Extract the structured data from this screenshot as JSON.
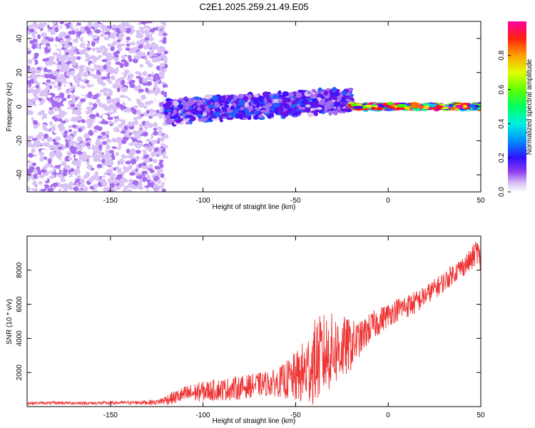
{
  "title": "C2E1.2025.259.21.49.E05",
  "colors": {
    "snr_line": "#ee3333",
    "spectrogram_palette": [
      "#ffffff",
      "#d9c2f5",
      "#a56cf0",
      "#6a12e8",
      "#4010ff",
      "#2060ff",
      "#00c8ff",
      "#00ff90",
      "#40ff00",
      "#c8ff00",
      "#ffd000",
      "#ff7000",
      "#ff1020",
      "#ff00a0"
    ]
  },
  "chart_data": [
    {
      "type": "heatmap",
      "name": "spectrogram",
      "xlabel": "Height of straight line (km)",
      "ylabel": "Frequency (Hz)",
      "xlim": [
        -195,
        50
      ],
      "ylim": [
        -50,
        50
      ],
      "xticks": [
        -150,
        -100,
        -50,
        0,
        50
      ],
      "yticks": [
        -40,
        -20,
        0,
        20,
        40
      ],
      "colorbar": {
        "label": "Normalized spectral amplitude",
        "range": [
          0,
          1
        ],
        "ticks": [
          0.0,
          0.2,
          0.4,
          0.6,
          0.8
        ]
      },
      "regions": [
        {
          "x": [
            -195,
            -120
          ],
          "freq_center": 0,
          "freq_halfwidth": 50,
          "amplitude": [
            0.02,
            0.15
          ],
          "description": "broadband noise"
        },
        {
          "x": [
            -120,
            -20
          ],
          "freq_center_start": -3,
          "freq_center_end": 4,
          "freq_halfwidth": 8,
          "amplitude": [
            0.1,
            0.4
          ]
        },
        {
          "x": [
            -20,
            50
          ],
          "freq_center": 0,
          "freq_halfwidth": 2,
          "amplitude": [
            0.3,
            1.0
          ]
        }
      ]
    },
    {
      "type": "line",
      "name": "snr",
      "xlabel": "Height of straight line (km)",
      "ylabel": "SNR (10 * v/v)",
      "xlim": [
        -195,
        50
      ],
      "ylim": [
        0,
        10000
      ],
      "xticks": [
        -150,
        -100,
        -50,
        0,
        50
      ],
      "yticks": [
        2000,
        4000,
        6000,
        8000
      ],
      "series": [
        {
          "x": [
            -195,
            -180,
            -160,
            -140,
            -125,
            -120,
            -110,
            -100,
            -90,
            -80,
            -70,
            -60,
            -50,
            -45,
            -40,
            -35,
            -30,
            -25,
            -20,
            -15,
            -10,
            -5,
            0,
            5,
            10,
            15,
            20,
            25,
            30,
            35,
            40,
            45,
            48,
            50
          ],
          "values": [
            200,
            220,
            200,
            230,
            260,
            400,
            700,
            900,
            1000,
            1100,
            1300,
            1400,
            1700,
            2000,
            2600,
            3000,
            3300,
            3400,
            3600,
            4000,
            4600,
            5000,
            5400,
            5700,
            5900,
            6100,
            6500,
            6900,
            7300,
            7800,
            8200,
            8600,
            9200,
            8400
          ],
          "spread": [
            80,
            80,
            90,
            100,
            150,
            300,
            500,
            600,
            650,
            700,
            700,
            800,
            1500,
            2000,
            2500,
            2500,
            2200,
            2000,
            1500,
            1000,
            900,
            800,
            700,
            700,
            700,
            700,
            600,
            600,
            600,
            600,
            600,
            700,
            800,
            700
          ]
        }
      ]
    }
  ]
}
